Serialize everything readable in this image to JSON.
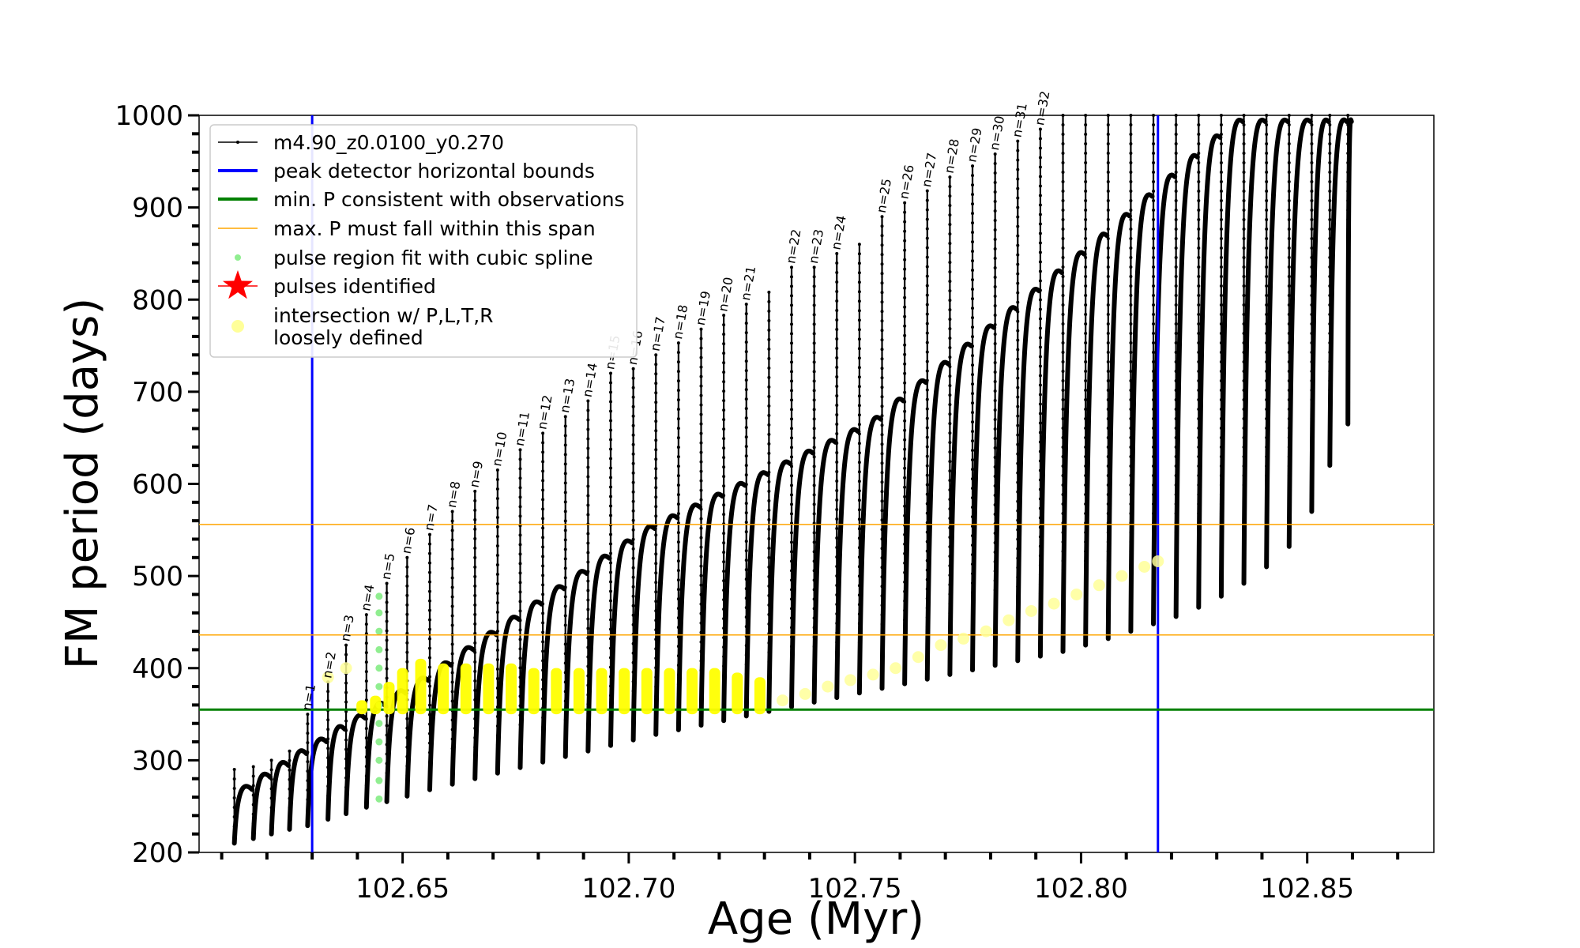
{
  "chart_data": {
    "type": "line",
    "title": "",
    "xlabel": "Age (Myr)",
    "ylabel": "FM period (days)",
    "xlim": [
      102.605,
      102.878
    ],
    "ylim": [
      200,
      1000
    ],
    "x_ticks": [
      102.65,
      102.7,
      102.75,
      102.8,
      102.85
    ],
    "x_tick_labels": [
      "102.65",
      "102.70",
      "102.75",
      "102.80",
      "102.85"
    ],
    "y_ticks": [
      200,
      300,
      400,
      500,
      600,
      700,
      800,
      900,
      1000
    ],
    "y_tick_labels": [
      "200",
      "300",
      "400",
      "500",
      "600",
      "700",
      "800",
      "900",
      "1000"
    ],
    "grid": false,
    "legend_position": "top-left",
    "legend": [
      {
        "label": "m4.90_z0.0100_y0.270",
        "style": "black-line-dots",
        "color": "#000000"
      },
      {
        "label": "peak detector horizontal bounds",
        "style": "line",
        "color": "#0000ff"
      },
      {
        "label": "min. P consistent with observations",
        "style": "line",
        "color": "#008000"
      },
      {
        "label": "max. P must fall within this span",
        "style": "thin-line",
        "color": "#ffa500"
      },
      {
        "label": "pulse region fit with cubic spline",
        "style": "dot",
        "color": "#90ee90"
      },
      {
        "label": "pulses identified",
        "style": "star",
        "color": "#ff0000"
      },
      {
        "label": "intersection w/ P,L,T,R",
        "style": "circle",
        "color": "#ffff99"
      },
      {
        "label": "loosely defined",
        "style": "none",
        "color": "#ffff99"
      }
    ],
    "reference_lines": {
      "vertical_bounds": [
        102.63,
        102.817
      ],
      "min_period": 355,
      "max_period_span": [
        436,
        556
      ]
    },
    "series": [
      {
        "name": "m4.90_z0.0100_y0.270",
        "kind": "pulse_cycles",
        "color": "#000000",
        "pulses": [
          {
            "x": 102.6128,
            "base": 210,
            "top": 290
          },
          {
            "x": 102.617,
            "base": 215,
            "top": 293
          },
          {
            "x": 102.621,
            "base": 220,
            "top": 300
          },
          {
            "x": 102.625,
            "base": 225,
            "top": 310
          },
          {
            "x": 102.629,
            "base": 229,
            "top": 350,
            "label": "n=1"
          },
          {
            "x": 102.6335,
            "base": 236,
            "top": 385,
            "label": "n=2"
          },
          {
            "x": 102.6375,
            "base": 242,
            "top": 425,
            "label": "n=3"
          },
          {
            "x": 102.642,
            "base": 249,
            "top": 458,
            "label": "n=4"
          },
          {
            "x": 102.6465,
            "base": 255,
            "top": 492,
            "label": "n=5"
          },
          {
            "x": 102.651,
            "base": 261,
            "top": 520,
            "label": "n=6"
          },
          {
            "x": 102.656,
            "base": 268,
            "top": 545,
            "label": "n=7"
          },
          {
            "x": 102.661,
            "base": 274,
            "top": 570,
            "label": "n=8"
          },
          {
            "x": 102.666,
            "base": 280,
            "top": 592,
            "label": "n=9"
          },
          {
            "x": 102.671,
            "base": 286,
            "top": 615,
            "label": "n=10"
          },
          {
            "x": 102.676,
            "base": 292,
            "top": 637,
            "label": "n=11"
          },
          {
            "x": 102.681,
            "base": 298,
            "top": 655,
            "label": "n=12"
          },
          {
            "x": 102.686,
            "base": 304,
            "top": 673,
            "label": "n=13"
          },
          {
            "x": 102.691,
            "base": 310,
            "top": 690,
            "label": "n=14"
          },
          {
            "x": 102.696,
            "base": 316,
            "top": 720,
            "label": "n=15"
          },
          {
            "x": 102.701,
            "base": 322,
            "top": 725,
            "label": "n=16"
          },
          {
            "x": 102.706,
            "base": 328,
            "top": 740,
            "label": "n=17"
          },
          {
            "x": 102.711,
            "base": 333,
            "top": 753,
            "label": "n=18"
          },
          {
            "x": 102.716,
            "base": 338,
            "top": 768,
            "label": "n=19"
          },
          {
            "x": 102.721,
            "base": 343,
            "top": 783,
            "label": "n=20"
          },
          {
            "x": 102.726,
            "base": 348,
            "top": 795,
            "label": "n=21"
          },
          {
            "x": 102.731,
            "base": 353,
            "top": 808
          },
          {
            "x": 102.736,
            "base": 358,
            "top": 835,
            "label": "n=22"
          },
          {
            "x": 102.741,
            "base": 363,
            "top": 835,
            "label": "n=23"
          },
          {
            "x": 102.746,
            "base": 368,
            "top": 850,
            "label": "n=24"
          },
          {
            "x": 102.751,
            "base": 373,
            "top": 860
          },
          {
            "x": 102.756,
            "base": 378,
            "top": 890,
            "label": "n=25"
          },
          {
            "x": 102.761,
            "base": 383,
            "top": 905,
            "label": "n=26"
          },
          {
            "x": 102.766,
            "base": 388,
            "top": 918,
            "label": "n=27"
          },
          {
            "x": 102.771,
            "base": 393,
            "top": 933,
            "label": "n=28"
          },
          {
            "x": 102.776,
            "base": 398,
            "top": 945,
            "label": "n=29"
          },
          {
            "x": 102.781,
            "base": 403,
            "top": 958,
            "label": "n=30"
          },
          {
            "x": 102.786,
            "base": 408,
            "top": 972,
            "label": "n=31"
          },
          {
            "x": 102.791,
            "base": 413,
            "top": 985,
            "label": "n=32"
          },
          {
            "x": 102.796,
            "base": 418,
            "top": 1000
          },
          {
            "x": 102.801,
            "base": 425,
            "top": 1000
          },
          {
            "x": 102.806,
            "base": 432,
            "top": 1000
          },
          {
            "x": 102.811,
            "base": 440,
            "top": 1000
          },
          {
            "x": 102.816,
            "base": 448,
            "top": 1000
          },
          {
            "x": 102.821,
            "base": 456,
            "top": 1000
          },
          {
            "x": 102.826,
            "base": 466,
            "top": 1000
          },
          {
            "x": 102.831,
            "base": 478,
            "top": 1000
          },
          {
            "x": 102.836,
            "base": 492,
            "top": 1000
          },
          {
            "x": 102.841,
            "base": 510,
            "top": 1000
          },
          {
            "x": 102.846,
            "base": 532,
            "top": 1000
          },
          {
            "x": 102.851,
            "base": 570,
            "top": 1000
          },
          {
            "x": 102.855,
            "base": 620,
            "top": 1000
          },
          {
            "x": 102.859,
            "base": 665,
            "top": 1000
          }
        ],
        "lower_envelope": [
          [
            102.6128,
            210
          ],
          [
            102.65,
            262
          ],
          [
            102.7,
            321
          ],
          [
            102.75,
            372
          ],
          [
            102.8,
            424
          ],
          [
            102.83,
            476
          ],
          [
            102.859,
            665
          ]
        ],
        "arc_peak_envelope": [
          [
            102.6128,
            275
          ],
          [
            102.63,
            330
          ],
          [
            102.65,
            390
          ],
          [
            102.7,
            556
          ],
          [
            102.75,
            673
          ],
          [
            102.8,
            872
          ],
          [
            102.83,
            1000
          ]
        ]
      },
      {
        "name": "pulse region fit with cubic spline",
        "kind": "points",
        "color": "#90ee90",
        "x": [
          102.6448,
          102.6448,
          102.6448,
          102.6448,
          102.6448,
          102.6448,
          102.6448,
          102.6448,
          102.6448,
          102.6448,
          102.6448,
          102.6448
        ],
        "y": [
          258,
          278,
          300,
          320,
          340,
          360,
          380,
          400,
          420,
          440,
          460,
          478
        ]
      },
      {
        "name": "intersection w/ P,L,T,R",
        "kind": "points",
        "color": "#ffff00",
        "x": [
          102.641,
          102.644,
          102.647,
          102.65,
          102.654,
          102.659,
          102.664,
          102.669,
          102.674,
          102.679,
          102.684,
          102.689,
          102.694,
          102.699,
          102.704,
          102.709,
          102.714,
          102.719,
          102.724,
          102.729
        ],
        "y": [
          360,
          365,
          380,
          395,
          405,
          400,
          400,
          400,
          400,
          395,
          395,
          395,
          395,
          395,
          395,
          395,
          395,
          395,
          390,
          385
        ]
      },
      {
        "name": "loosely defined",
        "kind": "points",
        "color": "#ffff99",
        "x": [
          102.6335,
          102.6375,
          102.734,
          102.739,
          102.744,
          102.749,
          102.754,
          102.759,
          102.764,
          102.769,
          102.774,
          102.779,
          102.784,
          102.789,
          102.794,
          102.799,
          102.804,
          102.809,
          102.814,
          102.817
        ],
        "y": [
          390,
          400,
          365,
          372,
          380,
          387,
          393,
          400,
          412,
          425,
          432,
          440,
          452,
          462,
          470,
          480,
          490,
          500,
          510,
          516
        ]
      }
    ]
  }
}
